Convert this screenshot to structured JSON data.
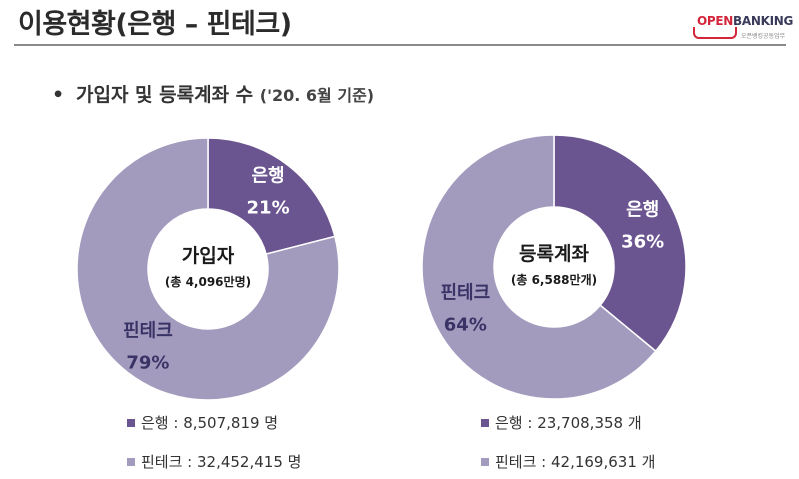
{
  "page": {
    "title": "이용현황(은행 – 핀테크)",
    "subtitle": "가입자 및 등록계좌 수",
    "basis": "('20. 6월 기준)",
    "bullet": "•"
  },
  "logo": {
    "text_open": "OPEN",
    "text_banking": "BANKING",
    "sub": "오픈뱅킹공동업무"
  },
  "colors": {
    "bank": "#6b5590",
    "fintech": "#a39bbe"
  },
  "chart_data": [
    {
      "type": "pie",
      "donut": true,
      "center_label": "가입자",
      "center_sub": "(총 4,096만명)",
      "slices": [
        {
          "name": "은행",
          "percent_label": "21%",
          "value": 21,
          "color": "#6b5590"
        },
        {
          "name": "핀테크",
          "percent_label": "79%",
          "value": 79,
          "color": "#a39bbe"
        }
      ],
      "legend": [
        {
          "text": "은행 : 8,507,819 명",
          "color": "#6b5590"
        },
        {
          "text": "핀테크 : 32,452,415 명",
          "color": "#a39bbe"
        }
      ]
    },
    {
      "type": "pie",
      "donut": true,
      "center_label": "등록계좌",
      "center_sub": "(총 6,588만개)",
      "slices": [
        {
          "name": "은행",
          "percent_label": "36%",
          "value": 36,
          "color": "#6b5590"
        },
        {
          "name": "핀테크",
          "percent_label": "64%",
          "value": 64,
          "color": "#a39bbe"
        }
      ],
      "legend": [
        {
          "text": "은행 : 23,708,358 개",
          "color": "#6b5590"
        },
        {
          "text": "핀테크 : 42,169,631 개",
          "color": "#a39bbe"
        }
      ]
    }
  ]
}
